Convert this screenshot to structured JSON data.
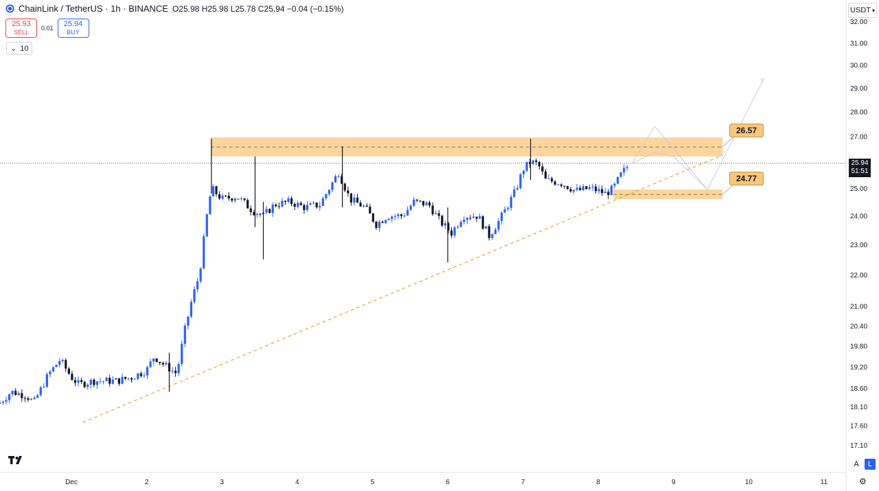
{
  "header": {
    "symbol": "ChainLink / TetherUS · 1h · BINANCE",
    "ohlc": "O25.98 H25.98 L25.78 C25.94 −0.04 (−0.15%)"
  },
  "trade": {
    "sell_price": "25.93",
    "sell_label": "SELL",
    "spread": "0.01",
    "buy_price": "25.94",
    "buy_label": "BUY"
  },
  "lots": {
    "value": "10"
  },
  "currency": {
    "label": "USDT"
  },
  "price_badge": {
    "price": "25.94",
    "timer": "51:51"
  },
  "bottom": {
    "a_label": "A",
    "l_label": "L"
  },
  "colors": {
    "up": "#2962ff",
    "down": "#131722",
    "zone": "#f8c77c",
    "trend": "#f0a83c"
  },
  "chart_data": {
    "type": "candlestick",
    "y_scale": "log",
    "ylim": [
      16.8,
      32.3
    ],
    "xlim": [
      0,
      11.1
    ],
    "y_ticks": [
      "32.00",
      "31.00",
      "30.00",
      "29.00",
      "28.00",
      "27.00",
      "26.00",
      "25.00",
      "24.00",
      "23.00",
      "22.00",
      "21.00",
      "20.40",
      "19.80",
      "19.20",
      "18.60",
      "18.10",
      "17.60",
      "17.10"
    ],
    "x_ticks": [
      {
        "label": "Dec",
        "x": 1
      },
      {
        "label": "2",
        "x": 2
      },
      {
        "label": "3",
        "x": 3
      },
      {
        "label": "4",
        "x": 4
      },
      {
        "label": "5",
        "x": 5
      },
      {
        "label": "6",
        "x": 6
      },
      {
        "label": "7",
        "x": 7
      },
      {
        "label": "8",
        "x": 8
      },
      {
        "label": "9",
        "x": 9
      },
      {
        "label": "10",
        "x": 10
      },
      {
        "label": "11",
        "x": 11
      }
    ],
    "close_path": [
      [
        0.05,
        18.2
      ],
      [
        0.2,
        18.5
      ],
      [
        0.4,
        18.4
      ],
      [
        0.5,
        18.2
      ],
      [
        0.7,
        19.0
      ],
      [
        0.85,
        19.4
      ],
      [
        1.0,
        18.9
      ],
      [
        1.1,
        18.7
      ],
      [
        1.3,
        18.8
      ],
      [
        1.6,
        18.8
      ],
      [
        1.8,
        18.9
      ],
      [
        2.0,
        19.1
      ],
      [
        2.1,
        19.5
      ],
      [
        2.2,
        19.3
      ],
      [
        2.4,
        19.0
      ],
      [
        2.5,
        20.2
      ],
      [
        2.6,
        21.2
      ],
      [
        2.7,
        22.0
      ],
      [
        2.8,
        24.0
      ],
      [
        2.86,
        25.0
      ],
      [
        3.0,
        24.6
      ],
      [
        3.2,
        24.7
      ],
      [
        3.4,
        24.2
      ],
      [
        3.55,
        24.0
      ],
      [
        3.7,
        24.4
      ],
      [
        3.9,
        24.5
      ],
      [
        4.1,
        24.3
      ],
      [
        4.3,
        24.4
      ],
      [
        4.55,
        25.6
      ],
      [
        4.7,
        24.6
      ],
      [
        4.9,
        24.3
      ],
      [
        5.05,
        23.7
      ],
      [
        5.2,
        24.0
      ],
      [
        5.4,
        24.0
      ],
      [
        5.55,
        24.5
      ],
      [
        5.75,
        24.4
      ],
      [
        5.9,
        23.8
      ],
      [
        6.05,
        23.4
      ],
      [
        6.2,
        24.0
      ],
      [
        6.4,
        24.0
      ],
      [
        6.55,
        23.3
      ],
      [
        6.7,
        23.9
      ],
      [
        6.9,
        24.9
      ],
      [
        7.0,
        25.7
      ],
      [
        7.1,
        26.0
      ],
      [
        7.2,
        25.9
      ],
      [
        7.3,
        25.3
      ],
      [
        7.5,
        25.2
      ],
      [
        7.7,
        24.9
      ],
      [
        7.9,
        25.0
      ],
      [
        8.1,
        24.8
      ],
      [
        8.2,
        25.0
      ],
      [
        8.3,
        25.5
      ],
      [
        8.42,
        25.94
      ]
    ],
    "spikes": [
      {
        "x": 2.86,
        "low": 24.8,
        "high": 26.9
      },
      {
        "x": 3.44,
        "low": 23.6,
        "high": 26.2
      },
      {
        "x": 3.55,
        "low": 22.5,
        "high": 24.5
      },
      {
        "x": 4.6,
        "low": 24.3,
        "high": 26.6
      },
      {
        "x": 6.0,
        "low": 22.4,
        "high": 24.3
      },
      {
        "x": 7.1,
        "low": 25.3,
        "high": 26.9
      },
      {
        "x": 2.3,
        "low": 18.5,
        "high": 19.6
      }
    ],
    "zones": [
      {
        "label": "26.57",
        "center": 26.57,
        "low": 26.2,
        "high": 26.95,
        "x_start": 2.85,
        "x_end": 9.65
      },
      {
        "label": "24.77",
        "center": 24.77,
        "low": 24.6,
        "high": 24.95,
        "x_start": 8.2,
        "x_end": 9.65
      }
    ],
    "trendline": {
      "x1": 1.15,
      "y1": 17.68,
      "x2": 9.65,
      "y2": 26.25
    },
    "projection": [
      [
        8.45,
        25.94
      ],
      [
        8.75,
        26.35
      ],
      [
        9.0,
        26.2
      ],
      [
        9.45,
        24.95
      ],
      [
        10.2,
        29.4
      ]
    ],
    "projection_alt": [
      [
        8.45,
        25.94
      ],
      [
        8.75,
        27.4
      ],
      [
        9.45,
        24.95
      ]
    ],
    "current_price": 25.94
  }
}
